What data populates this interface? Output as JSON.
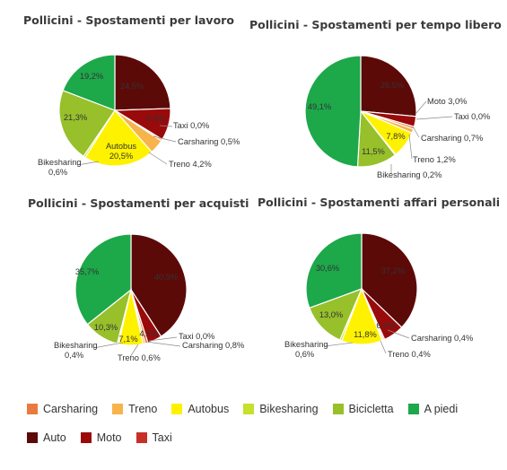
{
  "colors": {
    "Carsharing": "#e97b3e",
    "Treno": "#f7b44b",
    "Autobus": "#fef200",
    "Bikesharing": "#c6e02c",
    "Bicicletta": "#97c02b",
    "A piedi": "#1da84a",
    "Auto": "#5c0a08",
    "Moto": "#9a0a0a",
    "Taxi": "#c63027"
  },
  "legend": {
    "row1": [
      "Carsharing",
      "Treno",
      "Autobus",
      "Bikesharing",
      "Bicicletta",
      "A piedi"
    ],
    "row2": [
      "Auto",
      "Moto",
      "Taxi"
    ]
  },
  "chart_data": [
    {
      "type": "pie",
      "title": "Pollicini - Spostamenti per lavoro",
      "slices": [
        {
          "category": "Auto",
          "value": 24.5,
          "label": "24,5%"
        },
        {
          "category": "Moto",
          "value": 9.3,
          "label": "9,3%"
        },
        {
          "category": "Taxi",
          "value": 0.0,
          "label": "Taxi 0,0%"
        },
        {
          "category": "Carsharing",
          "value": 0.5,
          "label": "Carsharing 0,5%"
        },
        {
          "category": "Treno",
          "value": 4.2,
          "label": "Treno 4,2%"
        },
        {
          "category": "Autobus",
          "value": 20.5,
          "label": "Autobus 20,5%"
        },
        {
          "category": "Bikesharing",
          "value": 0.6,
          "label": "Bikesharing 0,6%"
        },
        {
          "category": "Bicicletta",
          "value": 21.3,
          "label": "21,3%"
        },
        {
          "category": "A piedi",
          "value": 19.2,
          "label": "19,2%"
        }
      ]
    },
    {
      "type": "pie",
      "title": "Pollicini - Spostamenti per tempo libero",
      "slices": [
        {
          "category": "Auto",
          "value": 26.5,
          "label": "26,5%"
        },
        {
          "category": "Moto",
          "value": 3.0,
          "label": "Moto 3,0%"
        },
        {
          "category": "Taxi",
          "value": 0.0,
          "label": "Taxi 0,0%"
        },
        {
          "category": "Carsharing",
          "value": 0.7,
          "label": "Carsharing 0,7%"
        },
        {
          "category": "Treno",
          "value": 1.2,
          "label": "Treno 1,2%"
        },
        {
          "category": "Autobus",
          "value": 7.8,
          "label": "7,8%"
        },
        {
          "category": "Bikesharing",
          "value": 0.2,
          "label": "Bikesharing 0,2%"
        },
        {
          "category": "Bicicletta",
          "value": 11.5,
          "label": "11,5%"
        },
        {
          "category": "A piedi",
          "value": 49.1,
          "label": "49,1%"
        }
      ]
    },
    {
      "type": "pie",
      "title": "Pollicini - Spostamenti per acquisti",
      "slices": [
        {
          "category": "Auto",
          "value": 40.9,
          "label": "40,9%"
        },
        {
          "category": "Moto",
          "value": 4.2,
          "label": "4,2%"
        },
        {
          "category": "Taxi",
          "value": 0.0,
          "label": "Taxi 0,0%"
        },
        {
          "category": "Carsharing",
          "value": 0.8,
          "label": "Carsharing 0,8%"
        },
        {
          "category": "Treno",
          "value": 0.6,
          "label": "Treno 0,6%"
        },
        {
          "category": "Autobus",
          "value": 7.1,
          "label": "7,1%"
        },
        {
          "category": "Bikesharing",
          "value": 0.4,
          "label": "Bikesharing 0,4%"
        },
        {
          "category": "Bicicletta",
          "value": 10.3,
          "label": "10,3%"
        },
        {
          "category": "A piedi",
          "value": 35.7,
          "label": "35,7%"
        }
      ]
    },
    {
      "type": "pie",
      "title": "Pollicini - Spostamenti affari personali",
      "slices": [
        {
          "category": "Auto",
          "value": 37.2,
          "label": "37,2%"
        },
        {
          "category": "Moto",
          "value": 6.0,
          "label": "6,0%"
        },
        {
          "category": "Carsharing",
          "value": 0.4,
          "label": "Carsharing 0,4%"
        },
        {
          "category": "Treno",
          "value": 0.4,
          "label": "Treno 0,4%"
        },
        {
          "category": "Autobus",
          "value": 11.8,
          "label": "11,8%"
        },
        {
          "category": "Bikesharing",
          "value": 0.6,
          "label": "Bikesharing 0,6%"
        },
        {
          "category": "Bicicletta",
          "value": 13.0,
          "label": "13,0%"
        },
        {
          "category": "A piedi",
          "value": 30.6,
          "label": "30,6%"
        }
      ]
    }
  ]
}
